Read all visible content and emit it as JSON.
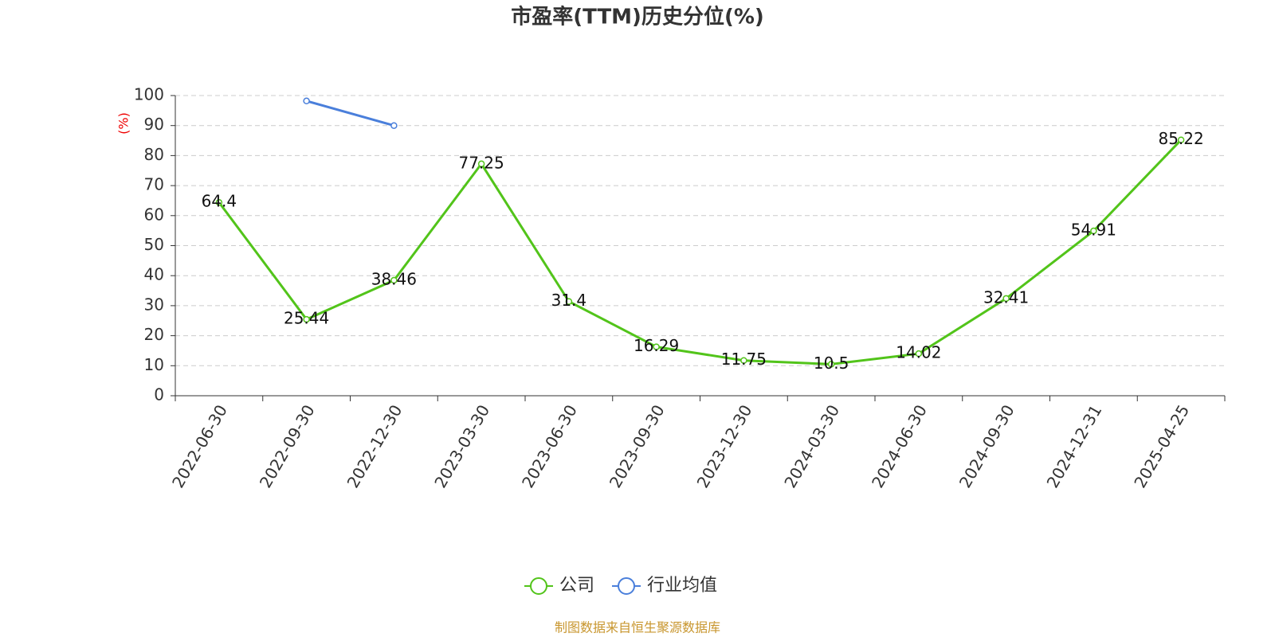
{
  "chart_data": {
    "type": "line",
    "title": "市盈率(TTM)历史分位(%)",
    "y_label": "(%)",
    "source": "制图数据来自恒生聚源数据库",
    "categories": [
      "2022-06-30",
      "2022-09-30",
      "2022-12-30",
      "2023-03-30",
      "2023-06-30",
      "2023-09-30",
      "2023-12-30",
      "2024-03-30",
      "2024-06-30",
      "2024-09-30",
      "2024-12-31",
      "2025-04-25"
    ],
    "series": [
      {
        "name": "公司",
        "color": "#52c41a",
        "values": [
          64.4,
          25.44,
          38.46,
          77.25,
          31.4,
          16.29,
          11.75,
          10.5,
          14.02,
          32.41,
          54.91,
          85.22
        ]
      },
      {
        "name": "行业均值",
        "color": "#4a7fdb",
        "values": [
          null,
          98.2,
          90,
          null,
          null,
          null,
          null,
          null,
          null,
          null,
          null,
          null
        ]
      }
    ],
    "ylim": [
      0,
      100
    ],
    "yticks": [
      0,
      10,
      20,
      30,
      40,
      50,
      60,
      70,
      80,
      90,
      100
    ],
    "grid": true,
    "legend": "bottom"
  }
}
